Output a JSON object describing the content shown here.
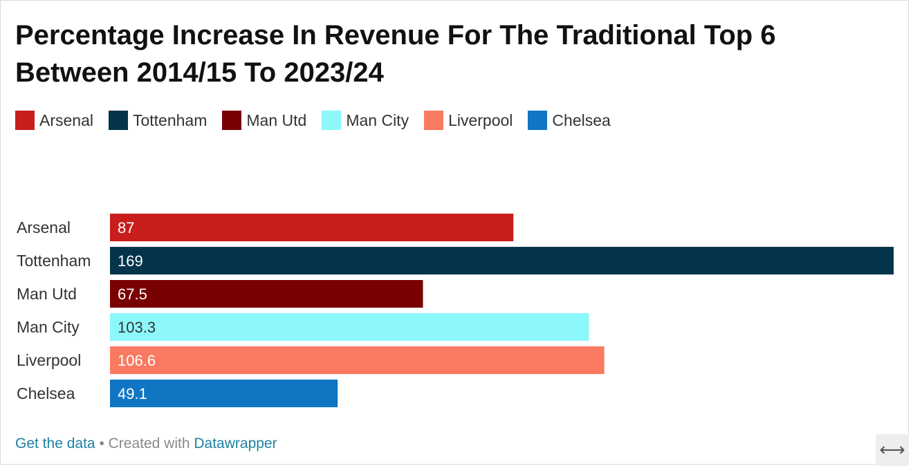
{
  "title": "Percentage Increase In Revenue For The Traditional Top 6 Between 2014/15 To 2023/24",
  "footer": {
    "get_data": "Get the data",
    "separator": "•",
    "created_with": "Created with",
    "datawrapper": "Datawrapper"
  },
  "resize_icon": "resize-horizontal-icon",
  "resize_glyph": "⟷",
  "chart_data": {
    "type": "bar",
    "orientation": "horizontal",
    "title": "Percentage Increase In Revenue For The Traditional Top 6 Between 2014/15 To 2023/24",
    "xlabel": "",
    "ylabel": "",
    "xlim": [
      0,
      169
    ],
    "grid": false,
    "legend_position": "top-left",
    "categories": [
      "Arsenal",
      "Tottenham",
      "Man Utd",
      "Man City",
      "Liverpool",
      "Chelsea"
    ],
    "values": [
      87,
      169,
      67.5,
      103.3,
      106.6,
      49.1
    ],
    "value_labels": [
      "87",
      "169",
      "67.5",
      "103.3",
      "106.6",
      "49.1"
    ],
    "colors": [
      "#c71e1d",
      "#03344b",
      "#790000",
      "#8cf8fc",
      "#fa7a61",
      "#0f76c3"
    ],
    "label_colors": [
      "#ffffff",
      "#ffffff",
      "#ffffff",
      "#333333",
      "#ffffff",
      "#ffffff"
    ],
    "legend": [
      {
        "label": "Arsenal",
        "color": "#c71e1d"
      },
      {
        "label": "Tottenham",
        "color": "#03344b"
      },
      {
        "label": "Man Utd",
        "color": "#790000"
      },
      {
        "label": "Man City",
        "color": "#8cf8fc"
      },
      {
        "label": "Liverpool",
        "color": "#fa7a61"
      },
      {
        "label": "Chelsea",
        "color": "#0f76c3"
      }
    ]
  }
}
